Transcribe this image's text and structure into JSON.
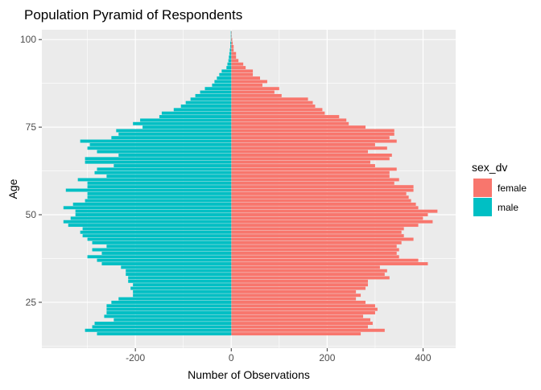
{
  "chart_data": {
    "type": "bar",
    "orientation": "horizontal",
    "title": "Population Pyramid of Respondents",
    "xlabel": "Number of Observations",
    "ylabel": "Age",
    "x_ticks": [
      -200,
      0,
      200,
      400
    ],
    "y_ticks": [
      25,
      50,
      75,
      100
    ],
    "xlim": [
      -395,
      468
    ],
    "ylim": [
      11.9,
      102.8
    ],
    "grid": true,
    "legend": {
      "title": "sex_dv",
      "position": "right",
      "entries": [
        {
          "label": "female",
          "color": "#F8766D"
        },
        {
          "label": "male",
          "color": "#00BFC4"
        }
      ]
    },
    "ages": [
      16,
      17,
      18,
      19,
      20,
      21,
      22,
      23,
      24,
      25,
      26,
      27,
      28,
      29,
      30,
      31,
      32,
      33,
      34,
      35,
      36,
      37,
      38,
      39,
      40,
      41,
      42,
      43,
      44,
      45,
      46,
      47,
      48,
      49,
      50,
      51,
      52,
      53,
      54,
      55,
      56,
      57,
      58,
      59,
      60,
      61,
      62,
      63,
      64,
      65,
      66,
      67,
      68,
      69,
      70,
      71,
      72,
      73,
      74,
      75,
      76,
      77,
      78,
      79,
      80,
      81,
      82,
      83,
      84,
      85,
      86,
      87,
      88,
      89,
      90,
      91,
      92,
      93,
      94,
      95,
      96,
      97,
      98,
      99,
      100,
      101,
      102
    ],
    "series": [
      {
        "name": "female",
        "color": "#F8766D",
        "values": [
          270,
          320,
          285,
          295,
          290,
          275,
          300,
          305,
          300,
          280,
          260,
          270,
          260,
          280,
          285,
          285,
          330,
          320,
          325,
          310,
          410,
          390,
          350,
          345,
          350,
          345,
          355,
          380,
          360,
          355,
          360,
          390,
          420,
          400,
          410,
          430,
          390,
          385,
          375,
          370,
          365,
          380,
          380,
          340,
          350,
          330,
          330,
          345,
          300,
          290,
          330,
          335,
          285,
          325,
          300,
          345,
          330,
          340,
          340,
          280,
          245,
          240,
          225,
          195,
          190,
          175,
          170,
          160,
          105,
          90,
          100,
          65,
          75,
          60,
          45,
          45,
          30,
          25,
          15,
          10,
          10,
          5,
          5,
          3,
          2,
          1,
          1
        ]
      },
      {
        "name": "male",
        "color": "#00BFC4",
        "values": [
          -280,
          -305,
          -290,
          -285,
          -245,
          -265,
          -260,
          -260,
          -260,
          -250,
          -235,
          -205,
          -205,
          -210,
          -205,
          -215,
          -215,
          -220,
          -220,
          -230,
          -270,
          -280,
          -300,
          -270,
          -290,
          -260,
          -290,
          -300,
          -310,
          -315,
          -310,
          -340,
          -350,
          -335,
          -325,
          -325,
          -350,
          -330,
          -305,
          -300,
          -300,
          -345,
          -300,
          -300,
          -320,
          -260,
          -285,
          -280,
          -245,
          -305,
          -305,
          -235,
          -280,
          -300,
          -295,
          -315,
          -250,
          -235,
          -240,
          -185,
          -205,
          -190,
          -150,
          -145,
          -120,
          -105,
          -95,
          -85,
          -75,
          -65,
          -55,
          -40,
          -35,
          -30,
          -25,
          -20,
          -10,
          -8,
          -6,
          -5,
          -4,
          -3,
          -2,
          -2,
          -1,
          -1,
          -1
        ]
      }
    ]
  }
}
